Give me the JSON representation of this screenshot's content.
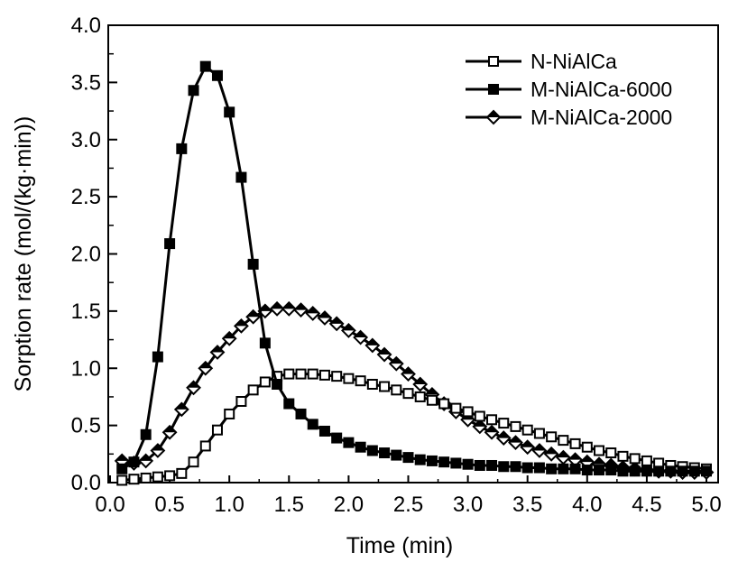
{
  "chart_data": {
    "type": "line",
    "title": "",
    "xlabel": "Time (min)",
    "ylabel": "Sorption rate (mol/(kg·min))",
    "xlim": [
      0.0,
      5.0
    ],
    "ylim": [
      0.0,
      4.0
    ],
    "xticks": [
      "0.0",
      "0.5",
      "1.0",
      "1.5",
      "2.0",
      "2.5",
      "3.0",
      "3.5",
      "4.0",
      "4.5",
      "5.0"
    ],
    "yticks": [
      "0.0",
      "0.5",
      "1.0",
      "1.5",
      "2.0",
      "2.5",
      "3.0",
      "3.5",
      "4.0"
    ],
    "grid": false,
    "legend_position": "top-right",
    "x": [
      0.1,
      0.2,
      0.3,
      0.4,
      0.5,
      0.6,
      0.7,
      0.8,
      0.9,
      1.0,
      1.1,
      1.2,
      1.3,
      1.4,
      1.5,
      1.6,
      1.7,
      1.8,
      1.9,
      2.0,
      2.1,
      2.2,
      2.3,
      2.4,
      2.5,
      2.6,
      2.7,
      2.8,
      2.9,
      3.0,
      3.1,
      3.2,
      3.3,
      3.4,
      3.5,
      3.6,
      3.7,
      3.8,
      3.9,
      4.0,
      4.1,
      4.2,
      4.3,
      4.4,
      4.5,
      4.6,
      4.7,
      4.8,
      4.9,
      5.0
    ],
    "series": [
      {
        "name": "N-NiAlCa",
        "marker": "open-square",
        "values": [
          0.02,
          0.03,
          0.04,
          0.05,
          0.06,
          0.08,
          0.18,
          0.32,
          0.46,
          0.6,
          0.71,
          0.81,
          0.88,
          0.93,
          0.95,
          0.95,
          0.95,
          0.94,
          0.93,
          0.91,
          0.89,
          0.86,
          0.84,
          0.81,
          0.78,
          0.75,
          0.72,
          0.69,
          0.65,
          0.62,
          0.58,
          0.55,
          0.52,
          0.49,
          0.46,
          0.43,
          0.4,
          0.37,
          0.34,
          0.31,
          0.28,
          0.26,
          0.23,
          0.21,
          0.19,
          0.17,
          0.15,
          0.14,
          0.13,
          0.12
        ]
      },
      {
        "name": "M-NiAlCa-6000",
        "marker": "filled-square",
        "values": [
          0.12,
          0.18,
          0.42,
          1.1,
          2.09,
          2.92,
          3.43,
          3.64,
          3.56,
          3.24,
          2.67,
          1.91,
          1.22,
          0.86,
          0.69,
          0.6,
          0.51,
          0.45,
          0.39,
          0.35,
          0.31,
          0.28,
          0.26,
          0.24,
          0.22,
          0.2,
          0.19,
          0.18,
          0.17,
          0.16,
          0.15,
          0.15,
          0.14,
          0.14,
          0.13,
          0.13,
          0.12,
          0.12,
          0.12,
          0.11,
          0.11,
          0.11,
          0.1,
          0.1,
          0.1,
          0.1,
          0.1,
          0.1,
          0.1,
          0.1
        ]
      },
      {
        "name": "M-NiAlCa-2000",
        "marker": "half-diamond",
        "values": [
          0.19,
          0.17,
          0.19,
          0.28,
          0.44,
          0.64,
          0.83,
          1.0,
          1.14,
          1.26,
          1.37,
          1.45,
          1.5,
          1.52,
          1.52,
          1.51,
          1.48,
          1.44,
          1.39,
          1.33,
          1.27,
          1.2,
          1.12,
          1.04,
          0.95,
          0.86,
          0.77,
          0.69,
          0.62,
          0.55,
          0.49,
          0.44,
          0.39,
          0.35,
          0.31,
          0.28,
          0.25,
          0.22,
          0.2,
          0.18,
          0.16,
          0.15,
          0.13,
          0.12,
          0.11,
          0.1,
          0.1,
          0.09,
          0.09,
          0.09
        ]
      }
    ],
    "line_color": "#000000",
    "background": "#ffffff"
  }
}
